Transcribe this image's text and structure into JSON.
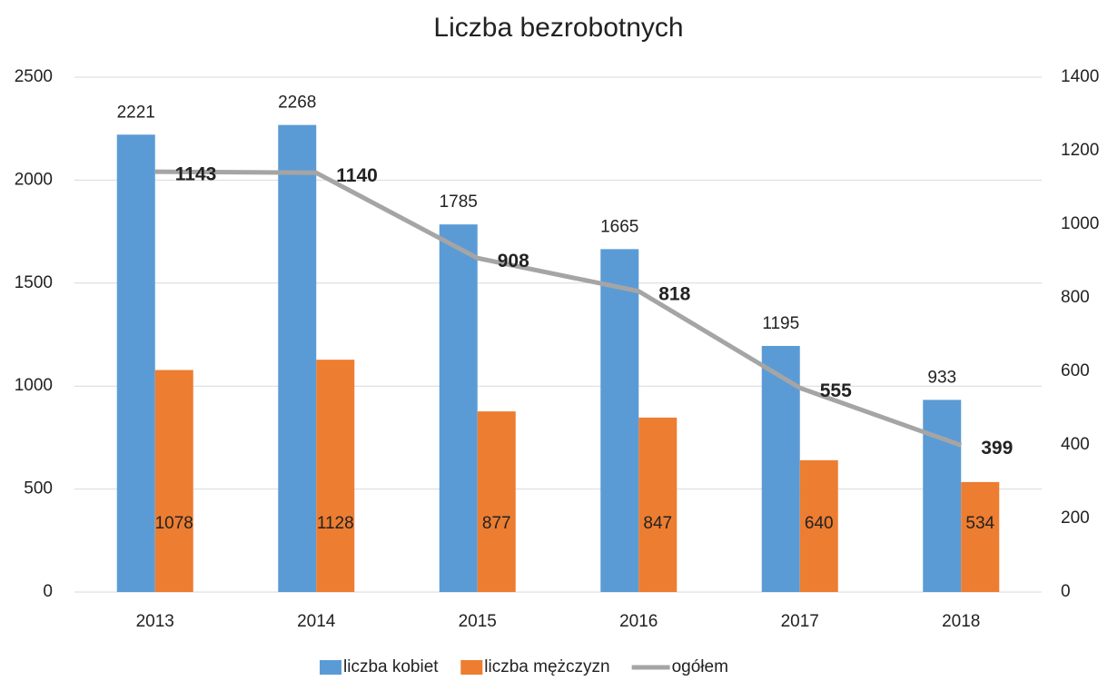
{
  "chart_data": {
    "type": "bar",
    "title": "Liczba bezrobotnych",
    "categories": [
      "2013",
      "2014",
      "2015",
      "2016",
      "2017",
      "2018"
    ],
    "series": [
      {
        "name": "liczba kobiet",
        "color": "#5b9bd5",
        "values": [
          2221,
          2268,
          1785,
          1665,
          1195,
          933
        ]
      },
      {
        "name": "liczba mężczyzn",
        "color": "#ed7d31",
        "values": [
          1078,
          1128,
          877,
          847,
          640,
          534
        ]
      },
      {
        "name": "ogółem",
        "color": "#a5a5a5",
        "type": "line",
        "axis": "y2",
        "values": [
          1143,
          1140,
          908,
          818,
          555,
          399
        ]
      }
    ],
    "ylim": [
      0,
      2500
    ],
    "yticks": [
      0,
      500,
      1000,
      1500,
      2000,
      2500
    ],
    "y2lim": [
      0,
      1400
    ],
    "y2ticks": [
      0,
      200,
      400,
      600,
      800,
      1000,
      1200,
      1400
    ],
    "grid": true,
    "legend": "bottom"
  }
}
